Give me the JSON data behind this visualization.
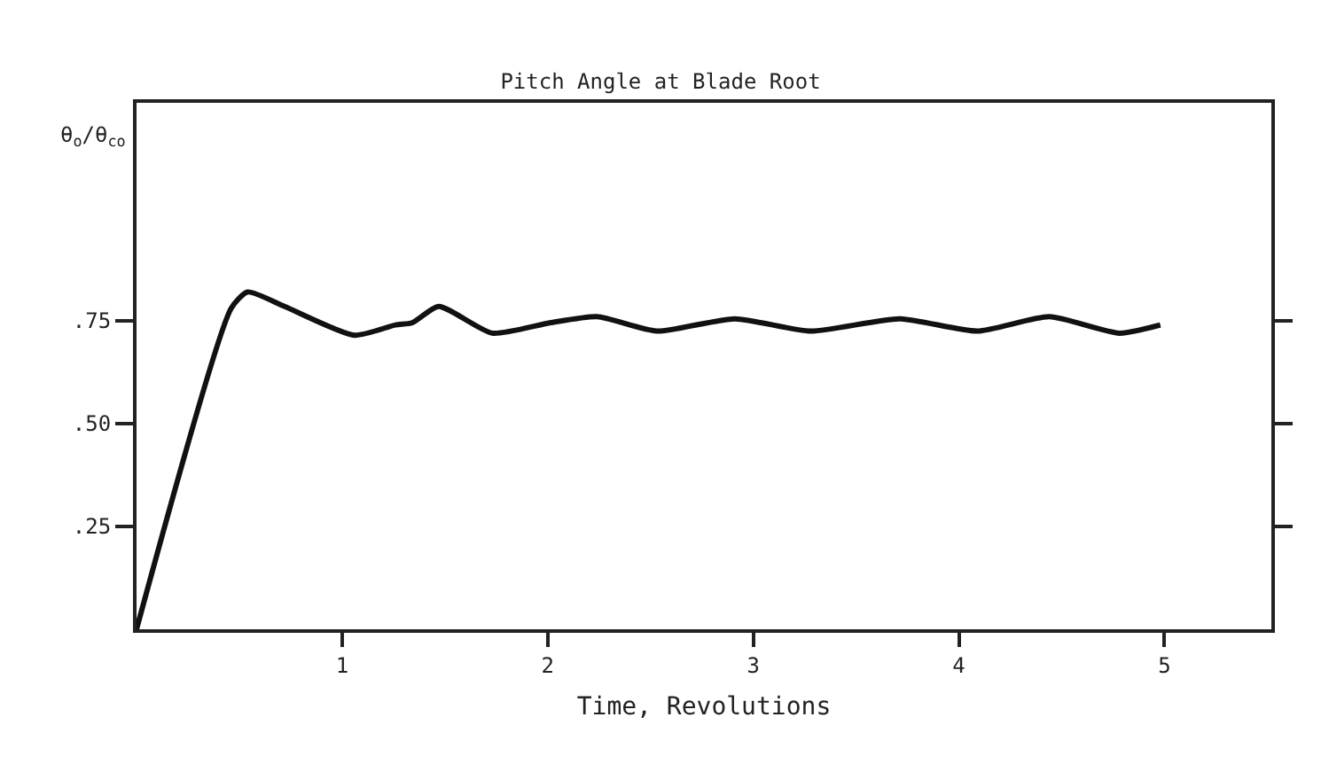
{
  "chart_data": {
    "type": "line",
    "title": "Pitch Angle at Blade Root",
    "xlabel": "Time, Revolutions",
    "ylabel": "θ$_{o}$/θ$_{co}$",
    "x": [
      0,
      0.46,
      0.54,
      0.72,
      1.06,
      1.26,
      1.34,
      1.47,
      1.73,
      2.01,
      2.24,
      2.53,
      2.91,
      3.28,
      3.71,
      4.09,
      4.44,
      4.78,
      4.98
    ],
    "series": [
      {
        "color": "#111111",
        "values": [
          0,
          0.78,
          0.82,
          0.785,
          0.715,
          0.74,
          0.745,
          0.785,
          0.72,
          0.745,
          0.76,
          0.725,
          0.755,
          0.725,
          0.755,
          0.725,
          0.76,
          0.72,
          0.74
        ]
      }
    ],
    "xlim": [
      0,
      5.52
    ],
    "ylim": [
      0,
      1.28
    ],
    "xticks": [
      1,
      2,
      3,
      4,
      5
    ],
    "yticks": [
      {
        "value": 0.25,
        "label": ".25"
      },
      {
        "value": 0.5,
        "label": ".50"
      },
      {
        "value": 0.75,
        "label": ".75"
      }
    ],
    "marker": "none",
    "line_style": "solid"
  }
}
